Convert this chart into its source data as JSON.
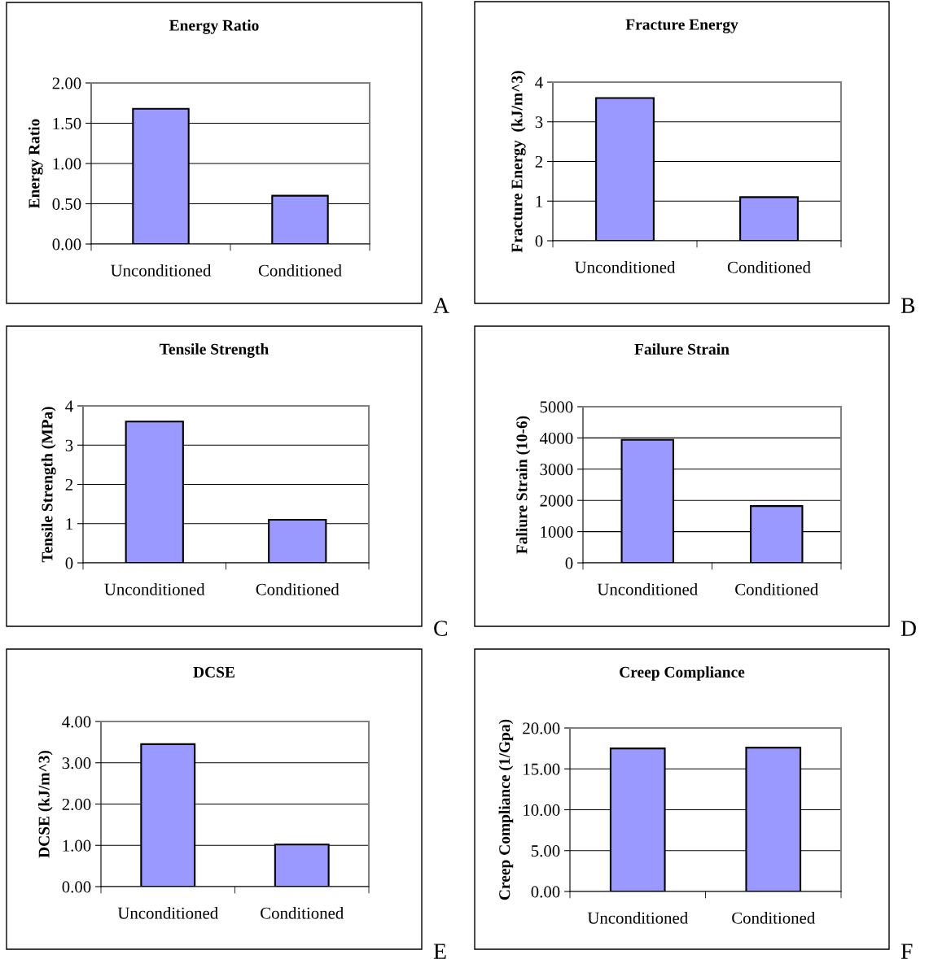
{
  "chart_data": [
    {
      "type": "bar",
      "title": "Energy Ratio",
      "ylabel": "Energy Ratio",
      "categories": [
        "Unconditioned",
        "Conditioned"
      ],
      "values": [
        1.68,
        0.6
      ],
      "color": "#9999ff",
      "ylim": [
        0,
        2
      ],
      "yticks": [
        {
          "value": 0,
          "label": "0.00"
        },
        {
          "value": 0.5,
          "label": "0.50"
        },
        {
          "value": 1,
          "label": "1.00"
        },
        {
          "value": 1.5,
          "label": "1.50"
        },
        {
          "value": 2,
          "label": "2.00"
        }
      ],
      "grid": "y",
      "annotations": [
        "A"
      ]
    },
    {
      "type": "bar",
      "title": "Fracture Energy",
      "ylabel": "Fracture Energy  (kJ/m^3)",
      "categories": [
        "Unconditioned",
        "Conditioned"
      ],
      "values": [
        3.6,
        1.1
      ],
      "color": "#9999ff",
      "ylim": [
        0,
        4
      ],
      "yticks": [
        0,
        1,
        2,
        3,
        4
      ],
      "grid": "y",
      "annotations": [
        "B"
      ]
    },
    {
      "type": "bar",
      "title": "Tensile Strength",
      "ylabel": "Tensile Strength (MPa)",
      "categories": [
        "Unconditioned",
        "Conditioned"
      ],
      "values": [
        3.6,
        1.1
      ],
      "color": "#9999ff",
      "ylim": [
        0,
        4
      ],
      "yticks": [
        0,
        1,
        2,
        3,
        4
      ],
      "grid": "y",
      "annotations": [
        "C"
      ]
    },
    {
      "type": "bar",
      "title": "Failure Strain",
      "ylabel": "Faliure Strain (10-6)",
      "categories": [
        "Unconditioned",
        "Conditioned"
      ],
      "values": [
        3940,
        1820
      ],
      "color": "#9999ff",
      "ylim": [
        0,
        5000
      ],
      "yticks": [
        0,
        1000,
        2000,
        3000,
        4000,
        5000
      ],
      "grid": "y",
      "annotations": [
        "D"
      ]
    },
    {
      "type": "bar",
      "title": "DCSE",
      "ylabel": "DCSE (kJ/m^3)",
      "categories": [
        "Unconditioned",
        "Conditioned"
      ],
      "values": [
        3.45,
        1.02
      ],
      "color": "#9999ff",
      "ylim": [
        0,
        4
      ],
      "yticks": [
        {
          "value": 0,
          "label": "0.00"
        },
        {
          "value": 1,
          "label": "1.00"
        },
        {
          "value": 2,
          "label": "2.00"
        },
        {
          "value": 3,
          "label": "3.00"
        },
        {
          "value": 4,
          "label": "4.00"
        }
      ],
      "grid": "y",
      "annotations": [
        "E"
      ]
    },
    {
      "type": "bar",
      "title": "Creep Compliance",
      "ylabel": "Creep Compliance (1/Gpa)",
      "categories": [
        "Unconditioned",
        "Conditioned"
      ],
      "values": [
        17.5,
        17.6
      ],
      "color": "#9999ff",
      "ylim": [
        0,
        20
      ],
      "yticks": [
        {
          "value": 0,
          "label": "0.00"
        },
        {
          "value": 5,
          "label": "5.00"
        },
        {
          "value": 10,
          "label": "10.00"
        },
        {
          "value": 15,
          "label": "15.00"
        },
        {
          "value": 20,
          "label": "20.00"
        }
      ],
      "grid": "y",
      "annotations": [
        "F"
      ]
    }
  ]
}
